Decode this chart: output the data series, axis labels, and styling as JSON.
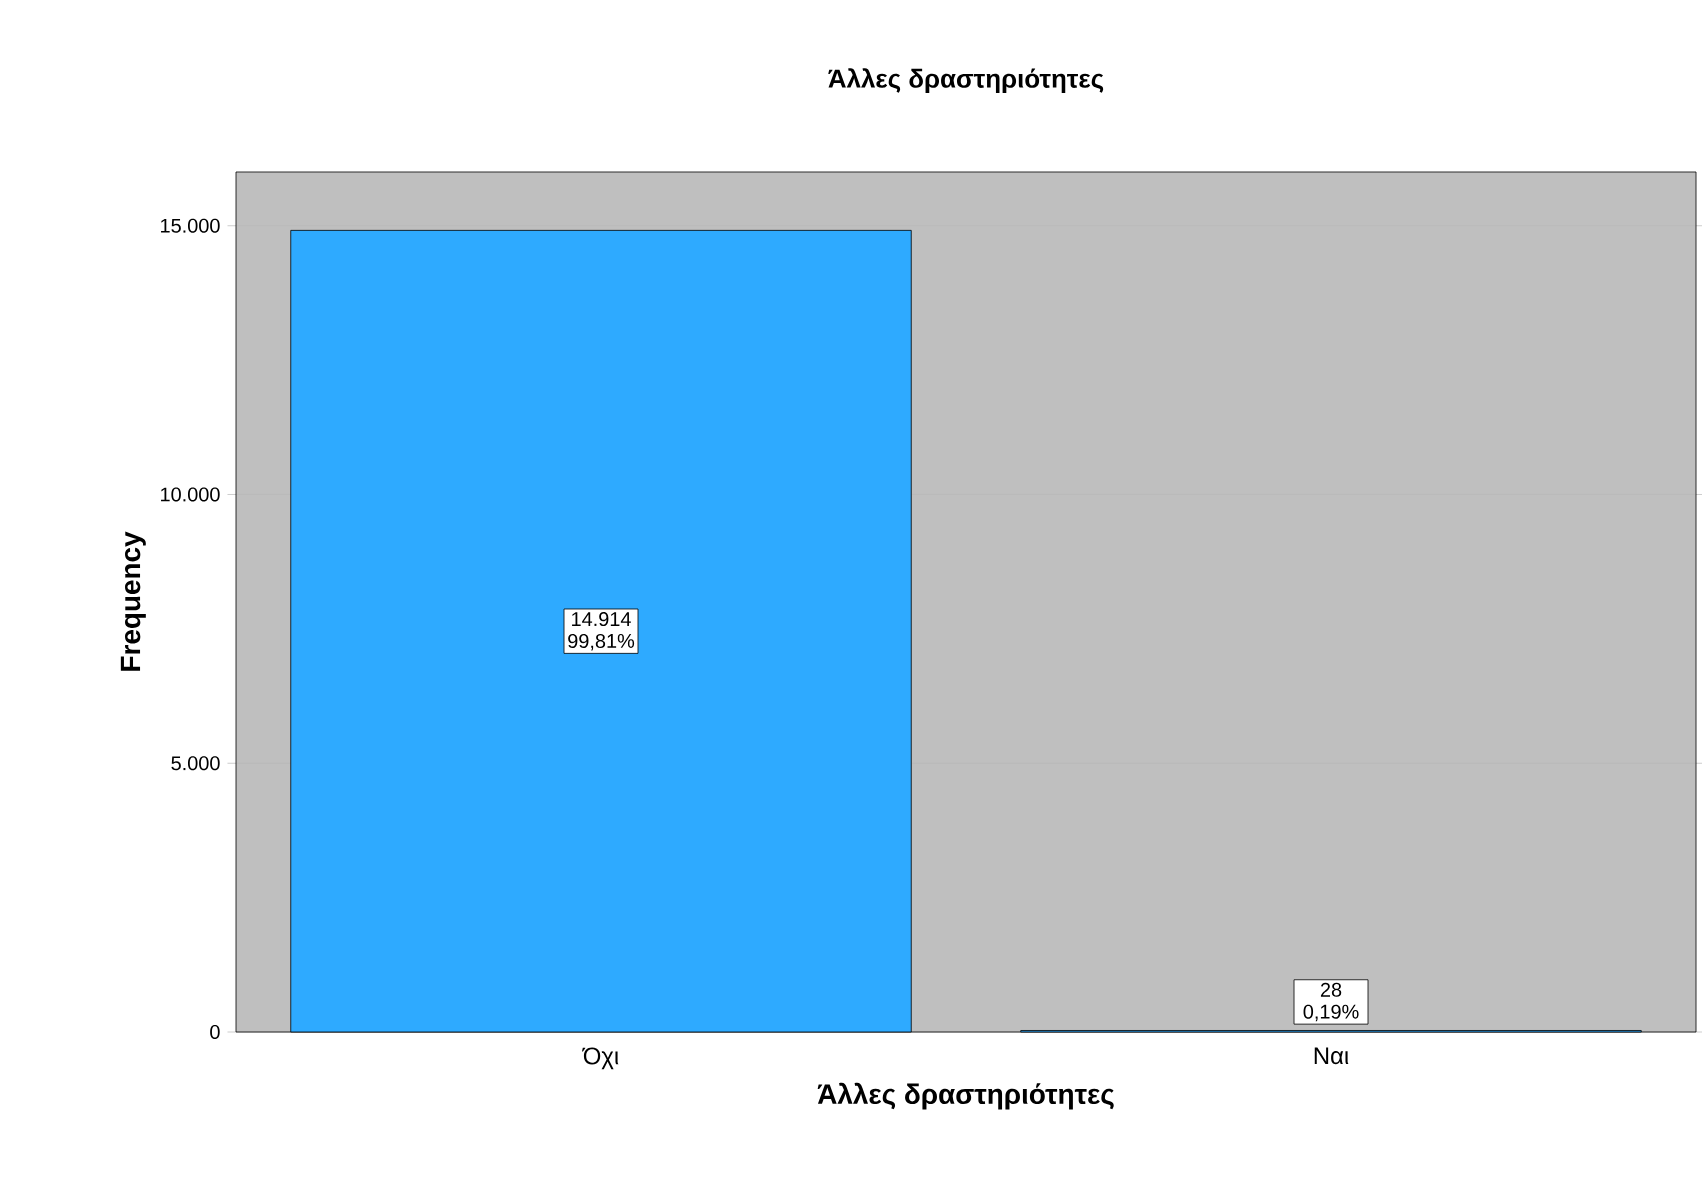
{
  "chart_data": {
    "type": "bar",
    "title": "Άλλες δραστηριότητες",
    "xlabel": "Άλλες δραστηριότητες",
    "ylabel": "Frequency",
    "categories": [
      "Όχι",
      "Ναι"
    ],
    "values": [
      14914,
      28
    ],
    "value_labels": [
      "14.914 99,81%",
      "28 0,19%"
    ],
    "color": "#2eaaff",
    "ylim": [
      0,
      16000
    ],
    "yticks": [
      0,
      {
        "value": 5000,
        "label": "5.000"
      },
      {
        "value": 10000,
        "label": "10.000"
      },
      {
        "value": 15000,
        "label": "15.000"
      }
    ],
    "grid": "y"
  }
}
